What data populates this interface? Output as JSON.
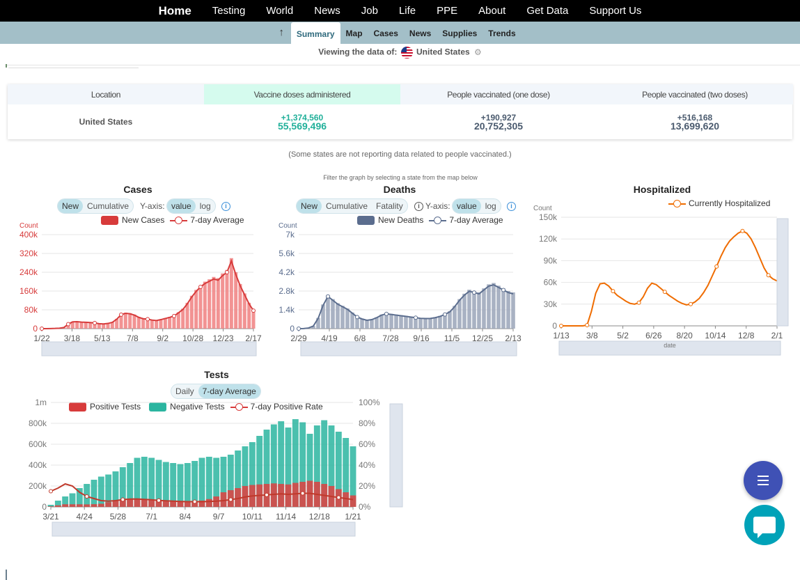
{
  "topnav": {
    "items": [
      "Home",
      "Testing",
      "World",
      "News",
      "Job",
      "Life",
      "PPE",
      "About",
      "Get Data",
      "Support Us"
    ]
  },
  "subnav": {
    "items": [
      "Summary",
      "Map",
      "Cases",
      "News",
      "Supplies",
      "Trends"
    ],
    "active": "Summary"
  },
  "viewing": {
    "label": "Viewing the data of:",
    "location": "United States"
  },
  "vaccine_table": {
    "headers": [
      "Location",
      "Vaccine doses administered",
      "People vaccinated (one dose)",
      "People vaccinated (two doses)"
    ],
    "row": {
      "location": "United States",
      "doses_delta": "+1,374,560",
      "doses_total": "55,569,496",
      "one_delta": "+190,927",
      "one_total": "20,752,305",
      "two_delta": "+516,168",
      "two_total": "13,699,620"
    },
    "note": "(Some states are not reporting data related to people vaccinated.)"
  },
  "filter_note": "Filter the graph by selecting a state from the map below",
  "colors": {
    "cases": "#d73b3b",
    "cases_bar": "#f08080",
    "deaths": "#5b6d8e",
    "deaths_bar": "#9aa4b8",
    "hosp": "#ef6c00",
    "negative": "#2bb5a0",
    "positive": "#e04040"
  },
  "controls": {
    "new": "New",
    "cumulative": "Cumulative",
    "fatality": "Fatality",
    "yaxis": "Y-axis:",
    "value": "value",
    "log": "log",
    "daily": "Daily",
    "avg7": "7-day Average"
  },
  "cases": {
    "title": "Cases",
    "legend": {
      "bar": "New Cases",
      "line": "7-day Average"
    },
    "chart_data": {
      "type": "bar",
      "ylabel": "Count",
      "y_ticks": [
        "0",
        "80k",
        "160k",
        "240k",
        "320k",
        "400k"
      ],
      "ylim": [
        0,
        400000
      ],
      "x_ticks": [
        "1/22",
        "3/18",
        "5/13",
        "7/8",
        "9/2",
        "10/28",
        "12/23",
        "2/17"
      ],
      "x": [
        0,
        8,
        16,
        24,
        32,
        40,
        48,
        56,
        64,
        72,
        80,
        88,
        96,
        104,
        112,
        120,
        128,
        136,
        144,
        152,
        160,
        168,
        176,
        184,
        192,
        200,
        208,
        216,
        224,
        232,
        240,
        248,
        256,
        264,
        272,
        280,
        288,
        296,
        304,
        312,
        320,
        328,
        336,
        344,
        352,
        360,
        368,
        376,
        384
      ],
      "series": [
        {
          "values": [
            0,
            0,
            500,
            1000,
            2000,
            5000,
            20000,
            30000,
            31000,
            29000,
            28000,
            27000,
            25000,
            22000,
            21000,
            23000,
            28000,
            42000,
            62000,
            68000,
            66000,
            60000,
            50000,
            44000,
            42000,
            38000,
            36000,
            40000,
            45000,
            50000,
            56000,
            70000,
            85000,
            110000,
            140000,
            165000,
            185000,
            200000,
            210000,
            220000,
            215000,
            235000,
            250000,
            300000,
            240000,
            190000,
            150000,
            110000,
            80000
          ]
        }
      ]
    }
  },
  "deaths": {
    "title": "Deaths",
    "legend": {
      "bar": "New Deaths",
      "line": "7-day Average"
    },
    "chart_data": {
      "type": "bar",
      "ylabel": "Count",
      "y_ticks": [
        "0",
        "1.4k",
        "2.8k",
        "4.2k",
        "5.6k",
        "7k"
      ],
      "ylim": [
        0,
        7000
      ],
      "x_ticks": [
        "2/29",
        "4/19",
        "6/8",
        "7/28",
        "9/16",
        "11/5",
        "12/25",
        "2/13"
      ],
      "x": [
        0,
        8,
        16,
        24,
        32,
        40,
        48,
        56,
        64,
        72,
        80,
        88,
        96,
        104,
        112,
        120,
        128,
        136,
        144,
        152,
        160,
        168,
        176,
        184,
        192,
        200,
        208,
        216,
        224,
        232,
        240,
        248,
        256,
        264,
        272,
        280,
        288,
        296,
        304,
        312,
        320,
        328,
        336,
        344,
        352
      ],
      "series": [
        {
          "values": [
            0,
            10,
            50,
            200,
            800,
            1800,
            2500,
            2200,
            1900,
            1700,
            1500,
            1200,
            900,
            750,
            650,
            700,
            850,
            1050,
            1150,
            1100,
            1050,
            1000,
            950,
            900,
            850,
            800,
            780,
            790,
            850,
            950,
            1100,
            1300,
            1700,
            2200,
            2600,
            2900,
            2800,
            2700,
            3000,
            3300,
            3400,
            3200,
            3000,
            2800,
            2700
          ]
        }
      ]
    }
  },
  "hospitalized": {
    "title": "Hospitalized",
    "legend": {
      "line": "Currently Hospitalized"
    },
    "xlabel": "date",
    "chart_data": {
      "type": "line",
      "ylabel": "Count",
      "y_ticks": [
        "0",
        "30k",
        "60k",
        "90k",
        "120k",
        "150k"
      ],
      "ylim": [
        0,
        150000
      ],
      "x_ticks": [
        "1/13",
        "3/8",
        "5/2",
        "6/26",
        "8/20",
        "10/14",
        "12/8",
        "2/1"
      ],
      "x": [
        0,
        8,
        16,
        24,
        32,
        40,
        48,
        56,
        64,
        72,
        80,
        88,
        96,
        104,
        112,
        120,
        128,
        136,
        144,
        152,
        160,
        168,
        176,
        184,
        192,
        200,
        208,
        216,
        224,
        232,
        240,
        248,
        256,
        264,
        272,
        280,
        288,
        296,
        304,
        312,
        320,
        328,
        336,
        344,
        352,
        360,
        368,
        376,
        384,
        392,
        400
      ],
      "series": [
        {
          "values": [
            0,
            0,
            0,
            0,
            0,
            0,
            1000,
            20000,
            45000,
            58000,
            59000,
            55000,
            48000,
            42000,
            38000,
            34000,
            31000,
            30000,
            32000,
            40000,
            52000,
            59000,
            57000,
            52000,
            47000,
            42000,
            38000,
            34000,
            31000,
            29000,
            30000,
            33000,
            38000,
            46000,
            56000,
            69000,
            82000,
            96000,
            108000,
            117000,
            123000,
            128000,
            131000,
            128000,
            120000,
            108000,
            94000,
            80000,
            70000,
            65000,
            62000
          ]
        }
      ]
    }
  },
  "tests": {
    "title": "Tests",
    "legend": {
      "positive": "Positive Tests",
      "negative": "Negative Tests",
      "rate": "7-day Positive Rate"
    },
    "chart_data": {
      "type": "bar",
      "y_ticks": [
        "0",
        "200k",
        "400k",
        "600k",
        "800k",
        "1m"
      ],
      "y2_ticks": [
        "0%",
        "20%",
        "40%",
        "60%",
        "80%",
        "100%"
      ],
      "ylim": [
        0,
        1000000
      ],
      "x_ticks": [
        "3/21",
        "4/24",
        "5/28",
        "7/1",
        "8/4",
        "9/7",
        "10/11",
        "11/14",
        "12/18",
        "1/21"
      ],
      "x": [
        0,
        8,
        16,
        24,
        32,
        40,
        48,
        56,
        64,
        72,
        80,
        88,
        96,
        104,
        112,
        120,
        128,
        136,
        144,
        152,
        160,
        168,
        176,
        184,
        192,
        200,
        208,
        216,
        224,
        232,
        240,
        248,
        256,
        264,
        272,
        280,
        288,
        296,
        304,
        312,
        320,
        328,
        336
      ],
      "series": [
        {
          "name": "Negative Tests",
          "values": [
            20000,
            60000,
            100000,
            130000,
            180000,
            220000,
            260000,
            290000,
            310000,
            340000,
            380000,
            420000,
            470000,
            480000,
            470000,
            450000,
            430000,
            420000,
            410000,
            420000,
            440000,
            470000,
            480000,
            470000,
            480000,
            500000,
            540000,
            580000,
            620000,
            680000,
            740000,
            790000,
            820000,
            760000,
            840000,
            810000,
            700000,
            780000,
            830000,
            780000,
            720000,
            660000,
            580000
          ]
        },
        {
          "name": "Positive Tests",
          "values": [
            5000,
            15000,
            25000,
            25000,
            25000,
            24000,
            26000,
            30000,
            45000,
            60000,
            70000,
            75000,
            75000,
            70000,
            65000,
            60000,
            55000,
            52000,
            50000,
            50000,
            55000,
            60000,
            75000,
            100000,
            140000,
            160000,
            180000,
            200000,
            210000,
            215000,
            220000,
            225000,
            220000,
            215000,
            230000,
            240000,
            250000,
            240000,
            220000,
            200000,
            170000,
            140000,
            110000
          ]
        },
        {
          "name": "7-day Positive Rate",
          "values": [
            15,
            18,
            22,
            20,
            14,
            10,
            8,
            6,
            5.5,
            6,
            7,
            7.5,
            7.6,
            7.2,
            6.8,
            6.2,
            5.8,
            5.5,
            5.2,
            5,
            5,
            5,
            5.2,
            5.5,
            6,
            7,
            8,
            9.5,
            10.5,
            11,
            11.5,
            12,
            12.5,
            12,
            12.5,
            13,
            13,
            12,
            11,
            10,
            9,
            8,
            7
          ]
        }
      ]
    }
  }
}
